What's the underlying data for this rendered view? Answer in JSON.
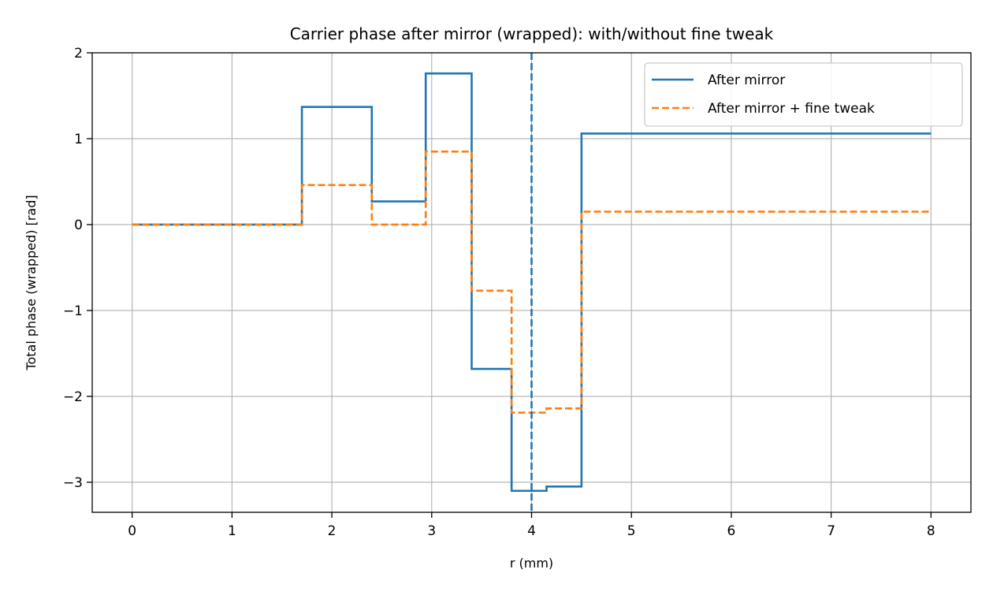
{
  "chart_data": {
    "type": "line",
    "title": "Carrier phase after mirror (wrapped): with/without fine tweak",
    "xlabel": "r (mm)",
    "ylabel": "Total phase (wrapped) [rad]",
    "xlim": [
      -0.4,
      8.4
    ],
    "ylim": [
      -3.35,
      2.0
    ],
    "xticks": [
      0,
      1,
      2,
      3,
      4,
      5,
      6,
      7,
      8
    ],
    "xtick_labels": [
      "0",
      "1",
      "2",
      "3",
      "4",
      "5",
      "6",
      "7",
      "8"
    ],
    "yticks": [
      -3,
      -2,
      -1,
      0,
      1,
      2
    ],
    "ytick_labels": [
      "−3",
      "−2",
      "−1",
      "0",
      "1",
      "2"
    ],
    "grid": true,
    "legend_position": "top-right",
    "series": [
      {
        "name": "After mirror",
        "color": "#1f77b4",
        "linestyle": "solid",
        "drawstyle": "steps-post",
        "x": [
          0,
          1.7,
          2.4,
          2.94,
          3.4,
          3.8,
          4.15,
          4.5,
          8.0
        ],
        "y": [
          0.0,
          1.37,
          0.27,
          1.76,
          -1.68,
          -3.1,
          -3.05,
          1.06,
          1.06
        ]
      },
      {
        "name": "After mirror + fine tweak",
        "color": "#ff7f0e",
        "linestyle": "dashed",
        "drawstyle": "steps-post",
        "x": [
          0,
          1.7,
          2.4,
          2.94,
          3.4,
          3.8,
          4.15,
          4.5,
          8.0
        ],
        "y": [
          0.0,
          0.46,
          0.0,
          0.85,
          -0.77,
          -2.19,
          -2.14,
          0.15,
          0.15
        ]
      }
    ],
    "vlines": [
      {
        "x": 4.0,
        "color": "#1f77b4",
        "linestyle": "dashed"
      }
    ]
  }
}
